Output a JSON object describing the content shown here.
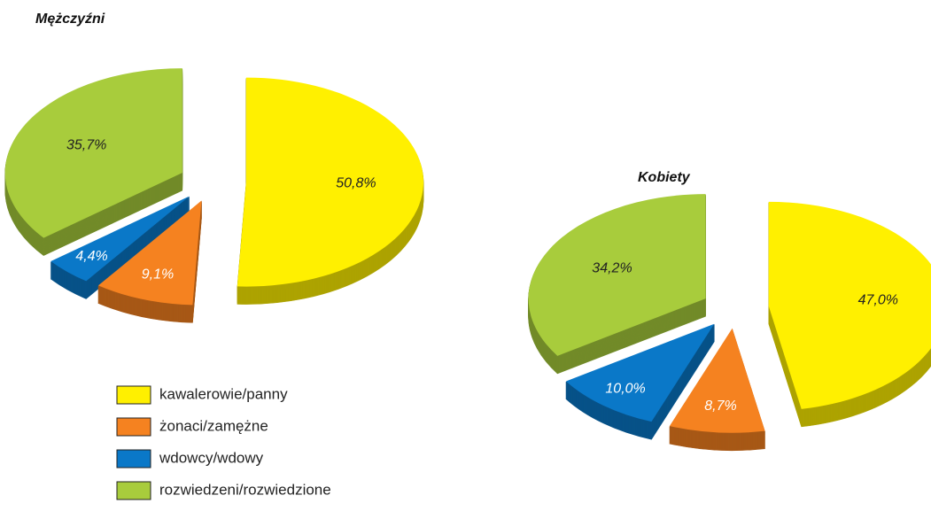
{
  "chart_data": [
    {
      "type": "pie",
      "title": "Mężczyźni",
      "values": [
        50.8,
        9.1,
        4.4,
        35.7
      ],
      "value_labels": [
        "50,8%",
        "9,1%",
        "4,4%",
        "35,7%"
      ]
    },
    {
      "type": "pie",
      "title": "Kobiety",
      "values": [
        47.0,
        8.7,
        10.0,
        34.2
      ],
      "value_labels": [
        "47,0%",
        "8,7%",
        "10,0%",
        "34,2%"
      ]
    }
  ],
  "legend": {
    "items": [
      "kawalerowie/panny",
      "żonaci/zamężne",
      "wdowcy/wdowy",
      "rozwiedzeni/rozwiedzione"
    ],
    "colors": [
      "#fff000",
      "#f58220",
      "#0a78c8",
      "#a8cc3c"
    ]
  }
}
